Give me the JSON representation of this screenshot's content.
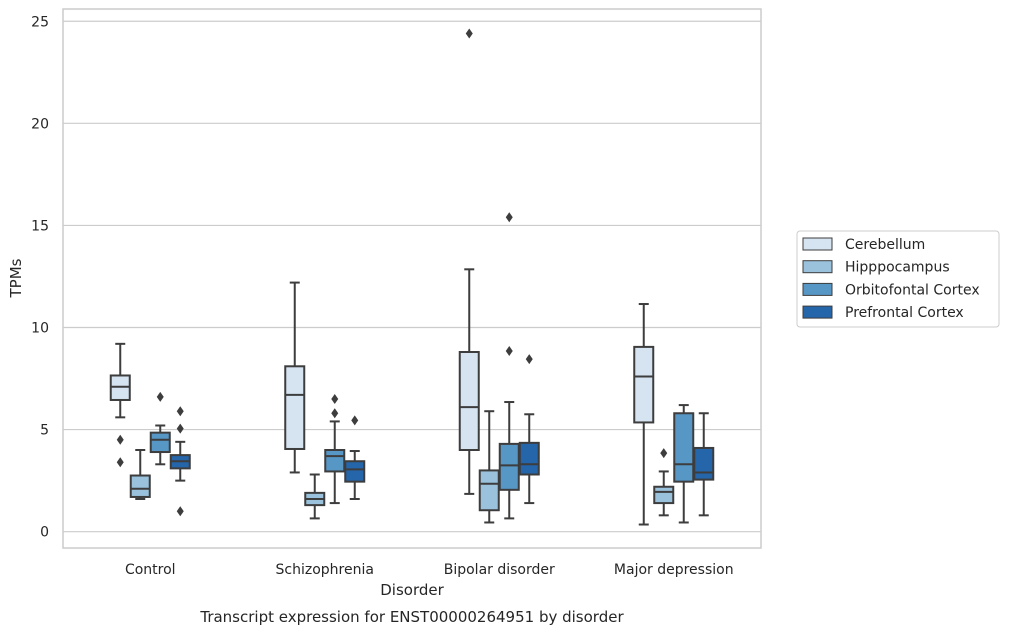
{
  "caption": "Transcript expression for ENST00000264951 by disorder",
  "chart_data": {
    "type": "box",
    "xlabel": "Disorder",
    "ylabel": "TPMs",
    "ylim": [
      -0.8,
      25.6
    ],
    "yticks": [
      "0",
      "5",
      "10",
      "15",
      "20",
      "25"
    ],
    "grid": "horizontal",
    "legend_position": "right",
    "categories": [
      "Control",
      "Schizophrenia",
      "Bipolar disorder",
      "Major depression"
    ],
    "series": [
      {
        "name": "Cerebellum",
        "color": "#d6e3f1",
        "boxes": [
          {
            "whisker_low": 5.6,
            "q1": 6.45,
            "median": 7.1,
            "q3": 7.65,
            "whisker_high": 9.2,
            "outliers": [
              4.5,
              3.4
            ]
          },
          {
            "whisker_low": 2.9,
            "q1": 4.05,
            "median": 6.7,
            "q3": 8.1,
            "whisker_high": 12.2,
            "outliers": []
          },
          {
            "whisker_low": 1.85,
            "q1": 4.0,
            "median": 6.1,
            "q3": 8.8,
            "whisker_high": 12.85,
            "outliers": [
              24.4
            ]
          },
          {
            "whisker_low": 0.35,
            "q1": 5.35,
            "median": 7.6,
            "q3": 9.05,
            "whisker_high": 11.15,
            "outliers": []
          }
        ]
      },
      {
        "name": "Hipppocampus",
        "color": "#9ac2dc",
        "boxes": [
          {
            "whisker_low": 1.6,
            "q1": 1.7,
            "median": 2.1,
            "q3": 2.75,
            "whisker_high": 4.0,
            "outliers": []
          },
          {
            "whisker_low": 0.65,
            "q1": 1.3,
            "median": 1.6,
            "q3": 1.9,
            "whisker_high": 2.8,
            "outliers": []
          },
          {
            "whisker_low": 0.45,
            "q1": 1.05,
            "median": 2.35,
            "q3": 3.0,
            "whisker_high": 5.9,
            "outliers": []
          },
          {
            "whisker_low": 0.8,
            "q1": 1.4,
            "median": 1.95,
            "q3": 2.2,
            "whisker_high": 2.95,
            "outliers": [
              3.85
            ]
          }
        ]
      },
      {
        "name": "Orbitofontal Cortex",
        "color": "#5797c6",
        "boxes": [
          {
            "whisker_low": 3.3,
            "q1": 3.9,
            "median": 4.5,
            "q3": 4.85,
            "whisker_high": 5.2,
            "outliers": [
              6.6
            ]
          },
          {
            "whisker_low": 1.4,
            "q1": 2.95,
            "median": 3.7,
            "q3": 4.0,
            "whisker_high": 5.4,
            "outliers": [
              6.5,
              5.8
            ]
          },
          {
            "whisker_low": 0.65,
            "q1": 2.05,
            "median": 3.25,
            "q3": 4.3,
            "whisker_high": 6.35,
            "outliers": [
              15.4,
              8.85
            ]
          },
          {
            "whisker_low": 0.45,
            "q1": 2.45,
            "median": 3.3,
            "q3": 5.8,
            "whisker_high": 6.2,
            "outliers": []
          }
        ]
      },
      {
        "name": "Prefrontal Cortex",
        "color": "#2565a9",
        "boxes": [
          {
            "whisker_low": 2.5,
            "q1": 3.1,
            "median": 3.45,
            "q3": 3.75,
            "whisker_high": 4.4,
            "outliers": [
              5.9,
              5.05,
              1.0
            ]
          },
          {
            "whisker_low": 1.6,
            "q1": 2.45,
            "median": 3.05,
            "q3": 3.45,
            "whisker_high": 3.95,
            "outliers": [
              5.45
            ]
          },
          {
            "whisker_low": 1.4,
            "q1": 2.8,
            "median": 3.3,
            "q3": 4.35,
            "whisker_high": 5.75,
            "outliers": [
              8.45
            ]
          },
          {
            "whisker_low": 0.8,
            "q1": 2.55,
            "median": 2.9,
            "q3": 4.1,
            "whisker_high": 5.8,
            "outliers": []
          }
        ]
      }
    ]
  }
}
